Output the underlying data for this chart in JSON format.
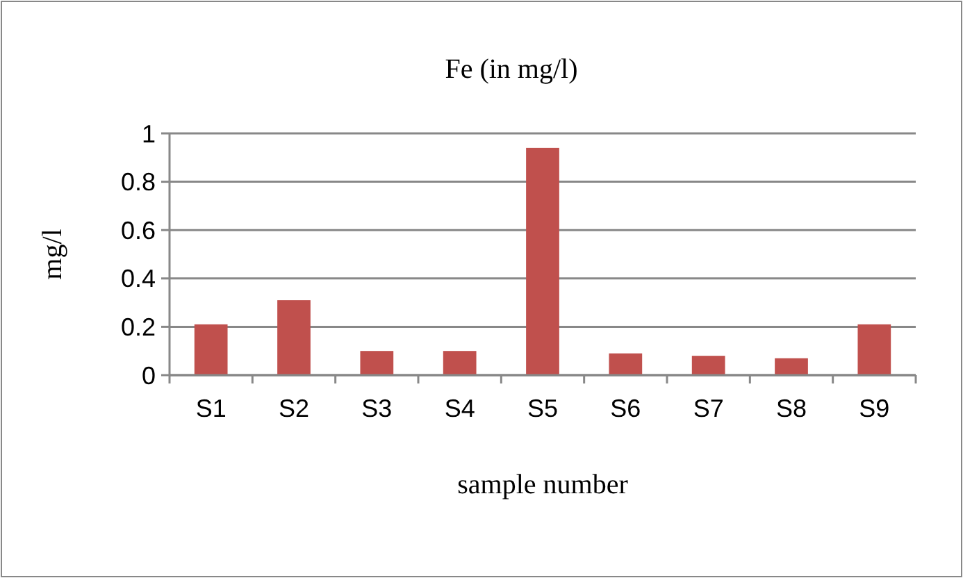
{
  "chart_data": {
    "type": "bar",
    "title": "Fe (in mg/l)",
    "xlabel": "sample number",
    "ylabel": "mg/l",
    "categories": [
      "S1",
      "S2",
      "S3",
      "S4",
      "S5",
      "S6",
      "S7",
      "S8",
      "S9"
    ],
    "values": [
      0.21,
      0.31,
      0.1,
      0.1,
      0.94,
      0.09,
      0.08,
      0.07,
      0.21
    ],
    "color": "#c0504d",
    "ylim": [
      0,
      1
    ],
    "yticks": [
      0,
      0.2,
      0.4,
      0.6,
      0.8,
      1
    ],
    "grid": "y"
  }
}
